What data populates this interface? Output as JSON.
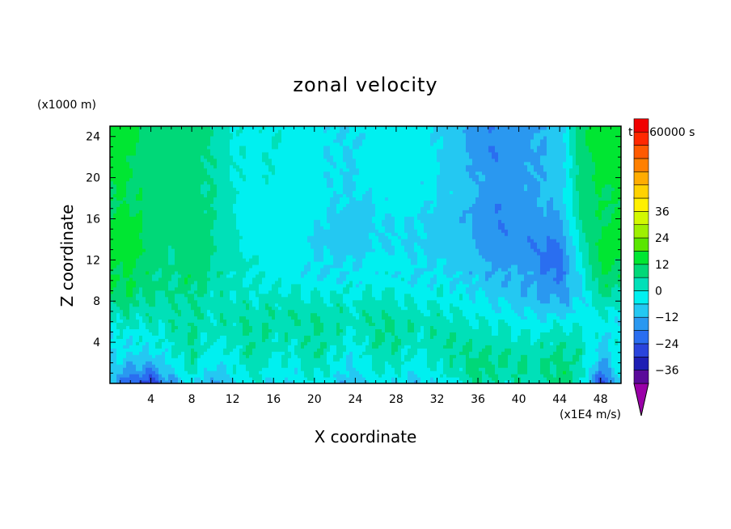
{
  "chart_data": {
    "type": "heatmap",
    "title": "zonal velocity",
    "xlabel": "X coordinate",
    "ylabel": "Z coordinate",
    "y_units": "(x1000 m)",
    "colorbar_units": "(x1E4 m/s)",
    "time_label": "t=360000 s",
    "xlim": [
      0,
      50
    ],
    "ylim": [
      0,
      25
    ],
    "x_ticks": [
      4,
      8,
      12,
      16,
      20,
      24,
      28,
      32,
      36,
      40,
      44,
      48
    ],
    "y_ticks": [
      4,
      8,
      12,
      16,
      20,
      24
    ],
    "colorbar": {
      "min": -42,
      "max": 42,
      "step": 6,
      "tick_values": [
        36,
        24,
        12,
        0,
        -12,
        -24,
        -36
      ],
      "tick_labels": [
        "36",
        "24",
        "12",
        "0",
        "−12",
        "−24",
        "−36"
      ],
      "extend": "both",
      "colors": [
        "#9a00a8",
        "#5a0a9a",
        "#1e1eb4",
        "#2a44dc",
        "#2a6ef0",
        "#2a98f0",
        "#24c8f2",
        "#00f0f0",
        "#00e0b8",
        "#00d878",
        "#00e632",
        "#5ae600",
        "#9ef000",
        "#d2f800",
        "#fff000",
        "#ffd200",
        "#ffac00",
        "#ff8000",
        "#ff5a00",
        "#ff2800",
        "#f00000",
        "#f4a0a0"
      ]
    },
    "z_columns_x": [
      0,
      2,
      4,
      6,
      8,
      10,
      12,
      14,
      16,
      18,
      20,
      22,
      24,
      26,
      28,
      30,
      32,
      34,
      36,
      38,
      40,
      42,
      44,
      46,
      48,
      50
    ],
    "z_rows_z": [
      0,
      1,
      2,
      3,
      4,
      5,
      6,
      7,
      8,
      9,
      10,
      11,
      12,
      13,
      14,
      15,
      16,
      17,
      18,
      19,
      20,
      21,
      22,
      23,
      24,
      25
    ],
    "z": [
      [
        -14,
        -24,
        -30,
        -14,
        -4,
        -14,
        -8,
        0,
        -6,
        -6,
        -2,
        -8,
        -12,
        -4,
        -6,
        -10,
        -4,
        -4,
        8,
        2,
        4,
        2,
        10,
        2,
        -28,
        -8
      ],
      [
        -10,
        -16,
        -20,
        -8,
        2,
        -10,
        -4,
        2,
        -4,
        -4,
        2,
        -4,
        -8,
        0,
        -2,
        -6,
        0,
        2,
        10,
        4,
        6,
        4,
        10,
        4,
        -20,
        -4
      ],
      [
        -8,
        -10,
        -12,
        -4,
        4,
        -6,
        -2,
        4,
        -2,
        -2,
        4,
        -2,
        -6,
        2,
        2,
        -4,
        2,
        4,
        8,
        6,
        6,
        6,
        8,
        4,
        -14,
        -2
      ],
      [
        -6,
        -6,
        -6,
        -2,
        6,
        -4,
        0,
        6,
        0,
        0,
        6,
        0,
        -4,
        4,
        4,
        -2,
        4,
        6,
        6,
        6,
        4,
        4,
        6,
        4,
        -10,
        0
      ],
      [
        -4,
        -4,
        -2,
        0,
        6,
        -2,
        2,
        6,
        2,
        2,
        6,
        2,
        -2,
        6,
        6,
        0,
        4,
        6,
        4,
        4,
        2,
        2,
        4,
        2,
        -6,
        -2
      ],
      [
        -2,
        -2,
        0,
        2,
        6,
        0,
        2,
        6,
        4,
        4,
        6,
        4,
        0,
        6,
        6,
        2,
        4,
        4,
        2,
        2,
        0,
        0,
        2,
        0,
        -4,
        -4
      ],
      [
        0,
        2,
        2,
        4,
        6,
        2,
        4,
        6,
        4,
        4,
        6,
        4,
        2,
        6,
        6,
        2,
        4,
        2,
        0,
        0,
        -2,
        -4,
        -2,
        -2,
        -2,
        -4
      ],
      [
        4,
        4,
        4,
        4,
        6,
        2,
        4,
        4,
        4,
        4,
        4,
        4,
        2,
        4,
        4,
        0,
        2,
        0,
        -2,
        -4,
        -6,
        -8,
        -8,
        -4,
        0,
        -2
      ],
      [
        8,
        8,
        6,
        4,
        6,
        2,
        2,
        2,
        2,
        2,
        2,
        2,
        0,
        2,
        2,
        -2,
        0,
        -2,
        -4,
        -6,
        -8,
        -12,
        -12,
        -6,
        4,
        2
      ],
      [
        12,
        10,
        8,
        6,
        8,
        4,
        2,
        0,
        0,
        0,
        0,
        0,
        -2,
        0,
        0,
        -4,
        -2,
        -4,
        -6,
        -8,
        -10,
        -14,
        -16,
        -8,
        8,
        6
      ],
      [
        12,
        12,
        8,
        6,
        10,
        4,
        2,
        0,
        -2,
        -2,
        -4,
        -4,
        -4,
        -2,
        -2,
        -6,
        -4,
        -6,
        -8,
        -10,
        -10,
        -14,
        -18,
        -6,
        10,
        10
      ],
      [
        12,
        12,
        8,
        6,
        12,
        6,
        2,
        0,
        -2,
        -4,
        -6,
        -6,
        -6,
        -4,
        -4,
        -6,
        -6,
        -8,
        -10,
        -12,
        -12,
        -16,
        -20,
        -4,
        12,
        12
      ],
      [
        14,
        14,
        8,
        6,
        12,
        6,
        2,
        0,
        -2,
        -4,
        -6,
        -6,
        -6,
        -4,
        -4,
        -6,
        -6,
        -8,
        -10,
        -14,
        -14,
        -18,
        -22,
        -2,
        14,
        12
      ],
      [
        14,
        14,
        10,
        6,
        10,
        6,
        2,
        -2,
        -2,
        -4,
        -6,
        -8,
        -8,
        -6,
        -6,
        -6,
        -8,
        -10,
        -12,
        -16,
        -16,
        -18,
        -20,
        0,
        14,
        14
      ],
      [
        14,
        14,
        10,
        8,
        10,
        6,
        2,
        -2,
        -2,
        -4,
        -6,
        -8,
        -8,
        -6,
        -6,
        -6,
        -8,
        -10,
        -12,
        -16,
        -16,
        -18,
        -18,
        2,
        14,
        14
      ],
      [
        14,
        14,
        10,
        8,
        10,
        6,
        0,
        -2,
        -2,
        -4,
        -6,
        -8,
        -8,
        -6,
        -6,
        -6,
        -8,
        -10,
        -14,
        -18,
        -16,
        -16,
        -16,
        4,
        12,
        14
      ],
      [
        12,
        14,
        10,
        8,
        10,
        6,
        0,
        -2,
        -2,
        -4,
        -4,
        -8,
        -8,
        -6,
        -6,
        -6,
        -8,
        -10,
        -14,
        -18,
        -16,
        -14,
        -14,
        6,
        12,
        12
      ],
      [
        12,
        12,
        10,
        8,
        10,
        6,
        0,
        -2,
        -2,
        -2,
        -4,
        -6,
        -8,
        -6,
        -4,
        -4,
        -8,
        -10,
        -14,
        -18,
        -14,
        -12,
        -12,
        6,
        12,
        12
      ],
      [
        12,
        12,
        10,
        8,
        8,
        6,
        0,
        -2,
        -2,
        -2,
        -4,
        -6,
        -6,
        -6,
        -4,
        -4,
        -6,
        -8,
        -12,
        -16,
        -14,
        -12,
        -10,
        8,
        12,
        12
      ],
      [
        12,
        12,
        10,
        8,
        8,
        6,
        0,
        -2,
        -2,
        -2,
        -4,
        -6,
        -6,
        -4,
        -4,
        -4,
        -6,
        -8,
        -12,
        -16,
        -14,
        -12,
        -10,
        8,
        12,
        12
      ],
      [
        14,
        12,
        10,
        8,
        8,
        6,
        0,
        -2,
        0,
        -2,
        -4,
        -6,
        -6,
        -4,
        -4,
        -4,
        -6,
        -8,
        -12,
        -16,
        -14,
        -12,
        -10,
        8,
        14,
        14
      ],
      [
        14,
        12,
        10,
        8,
        8,
        6,
        0,
        -2,
        0,
        -2,
        -4,
        -6,
        -6,
        -4,
        -4,
        -4,
        -6,
        -8,
        -14,
        -16,
        -14,
        -12,
        -10,
        8,
        14,
        14
      ],
      [
        14,
        12,
        10,
        8,
        8,
        6,
        0,
        -2,
        0,
        -2,
        -4,
        -6,
        -6,
        -4,
        -4,
        -4,
        -6,
        -8,
        -14,
        -18,
        -14,
        -12,
        -10,
        8,
        14,
        14
      ],
      [
        16,
        14,
        10,
        8,
        8,
        6,
        0,
        -2,
        0,
        -2,
        -4,
        -6,
        -6,
        -4,
        -4,
        -4,
        -6,
        -8,
        -16,
        -18,
        -14,
        -12,
        -10,
        10,
        16,
        16
      ],
      [
        16,
        14,
        10,
        8,
        8,
        6,
        0,
        -2,
        0,
        -2,
        -4,
        -6,
        -6,
        -4,
        -4,
        -4,
        -6,
        -10,
        -16,
        -18,
        -14,
        -12,
        -10,
        10,
        16,
        16
      ],
      [
        16,
        14,
        10,
        8,
        8,
        6,
        0,
        -2,
        0,
        -2,
        -4,
        -6,
        -6,
        -4,
        -4,
        -4,
        -6,
        -10,
        -16,
        -18,
        -14,
        -12,
        -10,
        10,
        16,
        16
      ]
    ]
  }
}
